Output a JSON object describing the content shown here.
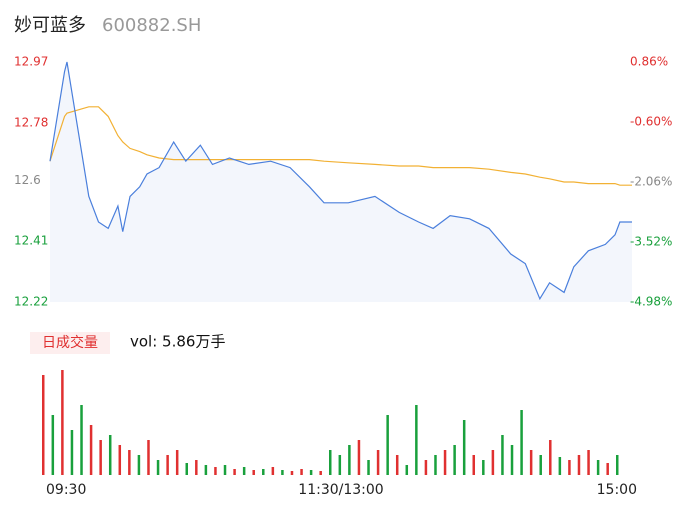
{
  "chart_data": {
    "type": "line",
    "title": "妙可蓝多",
    "subtitle": "600882.SH",
    "x": [
      0,
      6,
      7,
      16,
      20,
      24,
      28,
      30,
      33,
      37,
      40,
      45,
      51,
      56,
      62,
      67,
      74,
      82,
      91,
      99,
      107,
      113,
      123,
      134,
      144,
      152,
      158,
      165,
      173,
      181,
      190,
      196,
      202,
      206,
      212,
      216,
      222,
      229,
      233,
      235,
      240
    ],
    "series": [
      {
        "name": "price",
        "color": "#4a7fdc",
        "values": [
          12.66,
          12.94,
          12.97,
          12.55,
          12.47,
          12.45,
          12.52,
          12.44,
          12.55,
          12.58,
          12.62,
          12.64,
          12.72,
          12.66,
          12.71,
          12.65,
          12.67,
          12.65,
          12.66,
          12.64,
          12.58,
          12.53,
          12.53,
          12.55,
          12.5,
          12.47,
          12.45,
          12.49,
          12.48,
          12.45,
          12.37,
          12.34,
          12.23,
          12.28,
          12.25,
          12.33,
          12.38,
          12.4,
          12.43,
          12.47,
          12.47
        ]
      },
      {
        "name": "average",
        "color": "#f2b134",
        "values": [
          12.66,
          12.8,
          12.81,
          12.83,
          12.83,
          12.8,
          12.74,
          12.72,
          12.7,
          12.69,
          12.68,
          12.67,
          12.665,
          12.665,
          12.665,
          12.665,
          12.665,
          12.665,
          12.665,
          12.665,
          12.665,
          12.66,
          12.655,
          12.65,
          12.645,
          12.645,
          12.64,
          12.64,
          12.64,
          12.635,
          12.625,
          12.62,
          12.61,
          12.605,
          12.595,
          12.595,
          12.59,
          12.59,
          12.59,
          12.585,
          12.585
        ]
      }
    ],
    "xlim": [
      0,
      240
    ],
    "xticks": [
      {
        "value": 0,
        "label": "09:30"
      },
      {
        "value": 120,
        "label": "11:30/13:00"
      },
      {
        "value": 240,
        "label": "15:00"
      }
    ],
    "ylim": [
      12.22,
      12.97
    ],
    "yticks": [
      12.22,
      12.41,
      12.6,
      12.78,
      12.97
    ],
    "y2lim": [
      -4.98,
      0.86
    ],
    "y2ticks": [
      {
        "value": -4.98,
        "label": "-4.98%"
      },
      {
        "value": -3.52,
        "label": "-3.52%"
      },
      {
        "value": -2.06,
        "label": "-2.06%"
      },
      {
        "value": -0.6,
        "label": "-0.60%"
      },
      {
        "value": 0.86,
        "label": "0.86%"
      }
    ],
    "volume": {
      "legend": "日成交量",
      "label": "vol: 5.86万手",
      "vlim": [
        0,
        110
      ],
      "values": [
        100,
        60,
        105,
        45,
        70,
        50,
        35,
        40,
        30,
        25,
        20,
        35,
        15,
        20,
        25,
        12,
        15,
        10,
        8,
        10,
        6,
        8,
        5,
        6,
        8,
        5,
        4,
        6,
        5,
        4,
        25,
        20,
        30,
        35,
        15,
        25,
        60,
        20,
        10,
        70,
        15,
        20,
        25,
        30,
        55,
        20,
        15,
        25,
        40,
        30,
        65,
        25,
        20,
        35,
        18,
        15,
        20,
        25,
        15,
        12,
        20
      ],
      "colors": [
        "#e03030",
        "#19a03c",
        "#e03030",
        "#19a03c",
        "#19a03c",
        "#e03030",
        "#e03030",
        "#19a03c",
        "#e03030",
        "#e03030",
        "#19a03c",
        "#e03030",
        "#19a03c",
        "#e03030",
        "#e03030",
        "#19a03c",
        "#e03030",
        "#19a03c",
        "#e03030",
        "#19a03c",
        "#e03030",
        "#19a03c",
        "#e03030",
        "#19a03c",
        "#e03030",
        "#19a03c",
        "#e03030",
        "#e03030",
        "#19a03c",
        "#e03030",
        "#19a03c",
        "#19a03c",
        "#19a03c",
        "#e03030",
        "#19a03c",
        "#e03030",
        "#19a03c",
        "#e03030",
        "#19a03c",
        "#19a03c",
        "#e03030",
        "#19a03c",
        "#e03030",
        "#19a03c",
        "#19a03c",
        "#e03030",
        "#19a03c",
        "#e03030",
        "#19a03c",
        "#19a03c",
        "#19a03c",
        "#e03030",
        "#19a03c",
        "#e03030",
        "#19a03c",
        "#e03030",
        "#e03030",
        "#e03030",
        "#19a03c",
        "#e03030",
        "#19a03c"
      ]
    }
  }
}
